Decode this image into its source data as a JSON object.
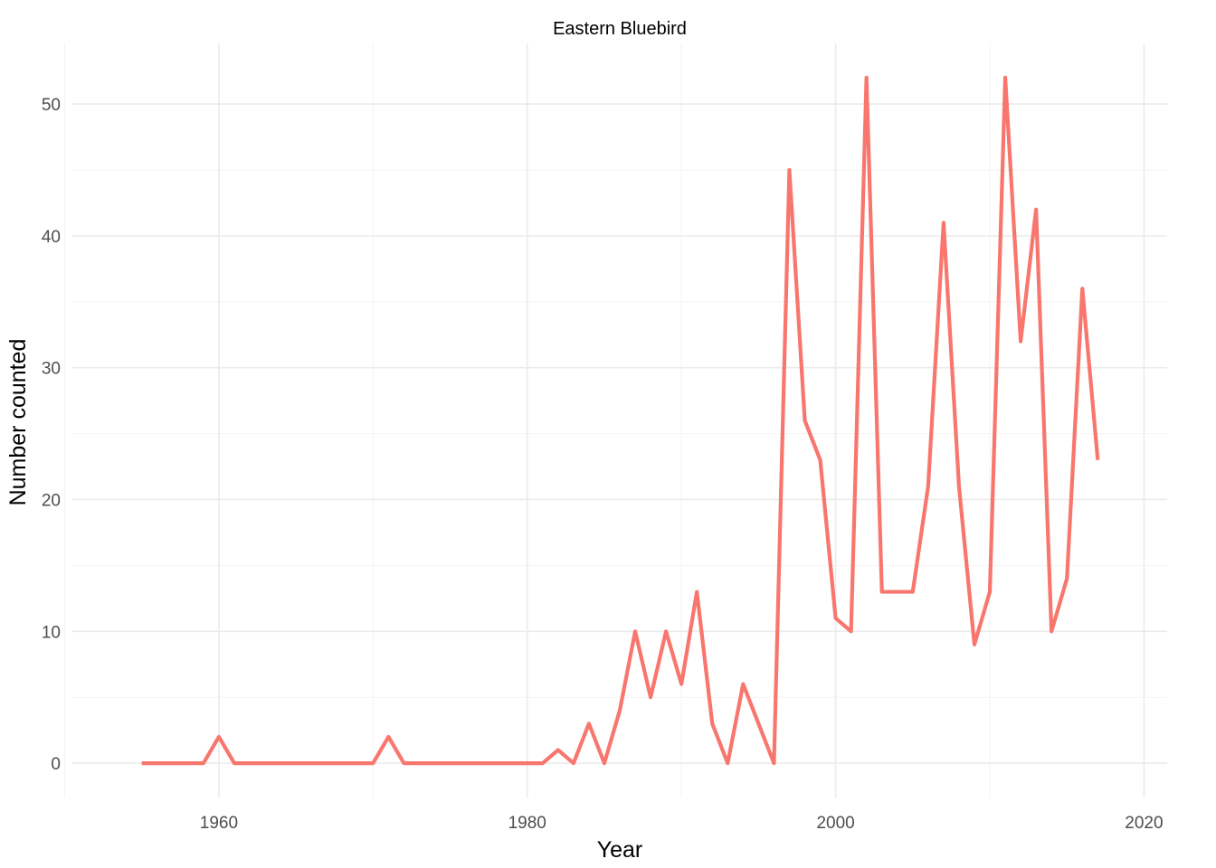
{
  "chart_data": {
    "type": "line",
    "title": "Eastern Bluebird",
    "xlabel": "Year",
    "ylabel": "Number counted",
    "xlim": [
      1950.5,
      2021.5
    ],
    "ylim": [
      -2.6,
      54.6
    ],
    "x_ticks": [
      1960,
      1980,
      2000,
      2020
    ],
    "x_tick_labels": [
      "1960",
      "1980",
      "2000",
      "2020"
    ],
    "x_minor_ticks": [
      1950,
      1970,
      1990,
      2010
    ],
    "y_ticks": [
      0,
      10,
      20,
      30,
      40,
      50
    ],
    "y_tick_labels": [
      "0",
      "10",
      "20",
      "30",
      "40",
      "50"
    ],
    "y_minor_ticks": [
      5,
      15,
      25,
      35,
      45
    ],
    "grid": true,
    "legend": "none",
    "series": [
      {
        "color": "#f8766d",
        "x": [
          1955,
          1956,
          1957,
          1958,
          1959,
          1960,
          1961,
          1962,
          1963,
          1964,
          1965,
          1966,
          1967,
          1968,
          1969,
          1970,
          1971,
          1972,
          1973,
          1974,
          1975,
          1976,
          1977,
          1978,
          1979,
          1980,
          1981,
          1982,
          1983,
          1984,
          1985,
          1986,
          1987,
          1988,
          1989,
          1990,
          1991,
          1992,
          1993,
          1994,
          1995,
          1996,
          1997,
          1998,
          1999,
          2000,
          2001,
          2002,
          2003,
          2004,
          2005,
          2006,
          2007,
          2008,
          2009,
          2010,
          2011,
          2012,
          2013,
          2014,
          2015,
          2016,
          2017
        ],
        "values": [
          0,
          0,
          0,
          0,
          0,
          2,
          0,
          0,
          0,
          0,
          0,
          0,
          0,
          0,
          0,
          0,
          2,
          0,
          0,
          0,
          0,
          0,
          0,
          0,
          0,
          0,
          0,
          1,
          0,
          3,
          0,
          4,
          10,
          5,
          10,
          6,
          13,
          3,
          0,
          6,
          3,
          0,
          45,
          26,
          23,
          11,
          10,
          52,
          13,
          13,
          13,
          21,
          41,
          21,
          9,
          13,
          52,
          32,
          42,
          10,
          14,
          36,
          23
        ]
      }
    ]
  }
}
